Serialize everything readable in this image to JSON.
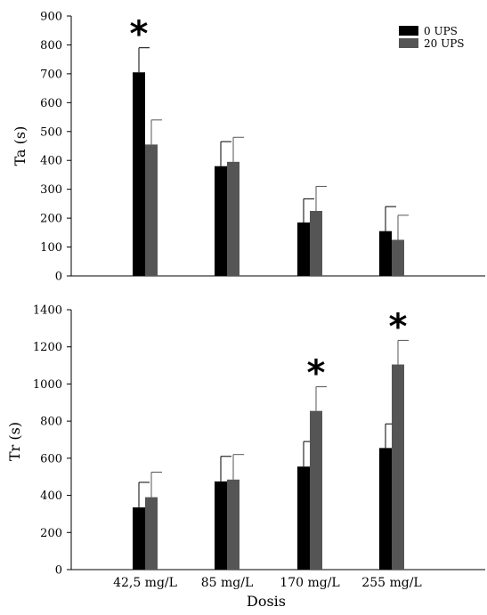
{
  "chart_data": [
    {
      "type": "bar",
      "ylabel": "Ta  (s)",
      "ylim": [
        0,
        900
      ],
      "yticks": [
        0,
        100,
        200,
        300,
        400,
        500,
        600,
        700,
        800,
        900
      ],
      "categories": [
        "42,5 mg/L",
        "85 mg/L",
        "170 mg/L",
        "255 mg/L"
      ],
      "series": [
        {
          "name": "0 UPS",
          "color": "#000000",
          "values": [
            705,
            380,
            185,
            155
          ],
          "errors": [
            85,
            85,
            82,
            85
          ]
        },
        {
          "name": "20 UPS",
          "color": "#555555",
          "values": [
            455,
            395,
            225,
            125
          ],
          "errors": [
            85,
            85,
            85,
            85
          ]
        }
      ],
      "significance": [
        {
          "category": 0,
          "series": 0,
          "label": "*"
        }
      ],
      "legend": "top-right",
      "grid": false
    },
    {
      "type": "bar",
      "ylabel": "Tr  (s)",
      "xlabel": "Dosis",
      "ylim": [
        0,
        1400
      ],
      "yticks": [
        0,
        200,
        400,
        600,
        800,
        1000,
        1200,
        1400
      ],
      "categories": [
        "42,5 mg/L",
        "85 mg/L",
        "170 mg/L",
        "255 mg/L"
      ],
      "series": [
        {
          "name": "0 UPS",
          "color": "#000000",
          "values": [
            335,
            475,
            555,
            655
          ],
          "errors": [
            135,
            135,
            135,
            130
          ]
        },
        {
          "name": "20 UPS",
          "color": "#555555",
          "values": [
            390,
            485,
            855,
            1105
          ],
          "errors": [
            135,
            135,
            130,
            130
          ]
        }
      ],
      "significance": [
        {
          "category": 2,
          "series": 1,
          "label": "*"
        },
        {
          "category": 3,
          "series": 1,
          "label": "*"
        }
      ],
      "grid": false
    }
  ]
}
